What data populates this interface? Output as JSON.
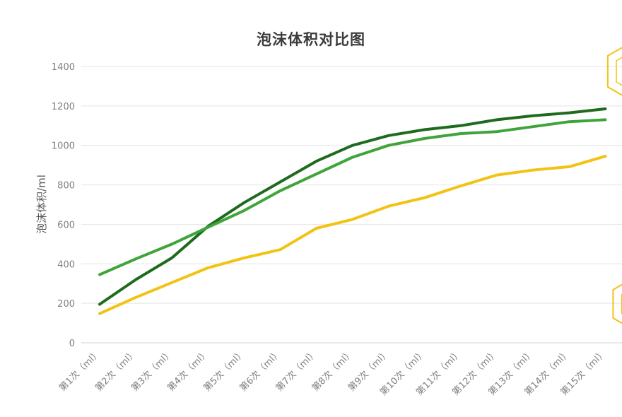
{
  "chart_data": {
    "type": "line",
    "title": "泡沫体积对比图",
    "xlabel": "",
    "ylabel": "泡沫体积/ml",
    "ylim": [
      0,
      1400
    ],
    "yticks": [
      0,
      200,
      400,
      600,
      800,
      1000,
      1200,
      1400
    ],
    "grid": true,
    "legend": "none",
    "categories": [
      "第1次（ml）",
      "第2次（ml）",
      "第3次（ml）",
      "第4次（ml）",
      "第5次（ml）",
      "第6次（ml）",
      "第7次（ml）",
      "第8次（ml）",
      "第9次（ml）",
      "第10次（ml）",
      "第11次（ml）",
      "第12次（ml）",
      "第13次（ml）",
      "第14次（ml）",
      "第15次（ml）"
    ],
    "series": [
      {
        "color": "#1e6b1e",
        "values": [
          195,
          320,
          430,
          590,
          710,
          815,
          920,
          1000,
          1050,
          1080,
          1100,
          1130,
          1150,
          1165,
          1185
        ]
      },
      {
        "color": "#3fa43a",
        "values": [
          345,
          425,
          500,
          585,
          670,
          770,
          855,
          940,
          1000,
          1035,
          1060,
          1070,
          1095,
          1120,
          1130
        ]
      },
      {
        "color": "#f2c314",
        "values": [
          148,
          230,
          305,
          380,
          430,
          472,
          580,
          625,
          692,
          735,
          795,
          850,
          875,
          892,
          945
        ]
      }
    ]
  },
  "decorations": {
    "hexagon_color": "#f2c314"
  }
}
